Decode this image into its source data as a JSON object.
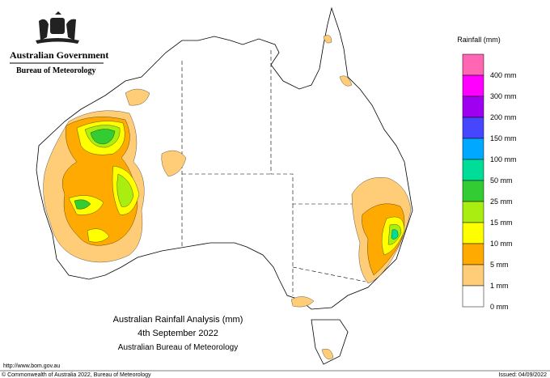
{
  "header": {
    "government": "Australian Government",
    "bureau": "Bureau of Meteorology"
  },
  "legend": {
    "title": "Rainfall (mm)",
    "entries": [
      {
        "label": null,
        "color": "#ff66b3"
      },
      {
        "label": "400 mm",
        "color": "#ff00ff"
      },
      {
        "label": "300 mm",
        "color": "#a000f0"
      },
      {
        "label": "200 mm",
        "color": "#4646ff"
      },
      {
        "label": "150 mm",
        "color": "#00a8ff"
      },
      {
        "label": "100 mm",
        "color": "#00dd99"
      },
      {
        "label": "50 mm",
        "color": "#33cc33"
      },
      {
        "label": "25 mm",
        "color": "#aaee11"
      },
      {
        "label": "15 mm",
        "color": "#ffff00"
      },
      {
        "label": "10 mm",
        "color": "#ffaa00"
      },
      {
        "label": "5 mm",
        "color": "#ffcc77"
      },
      {
        "label": "1 mm",
        "color": "#ffffff"
      }
    ],
    "last_label": "0 mm"
  },
  "caption": {
    "title": "Australian Rainfall Analysis (mm)",
    "date": "4th September 2022",
    "agency": "Australian Bureau of Meteorology"
  },
  "footer": {
    "url": "http://www.bom.gov.au",
    "copyright": "© Commonwealth of Australia 2022, Bureau of Meteorology",
    "issued": "Issued: 04/09/2022"
  }
}
